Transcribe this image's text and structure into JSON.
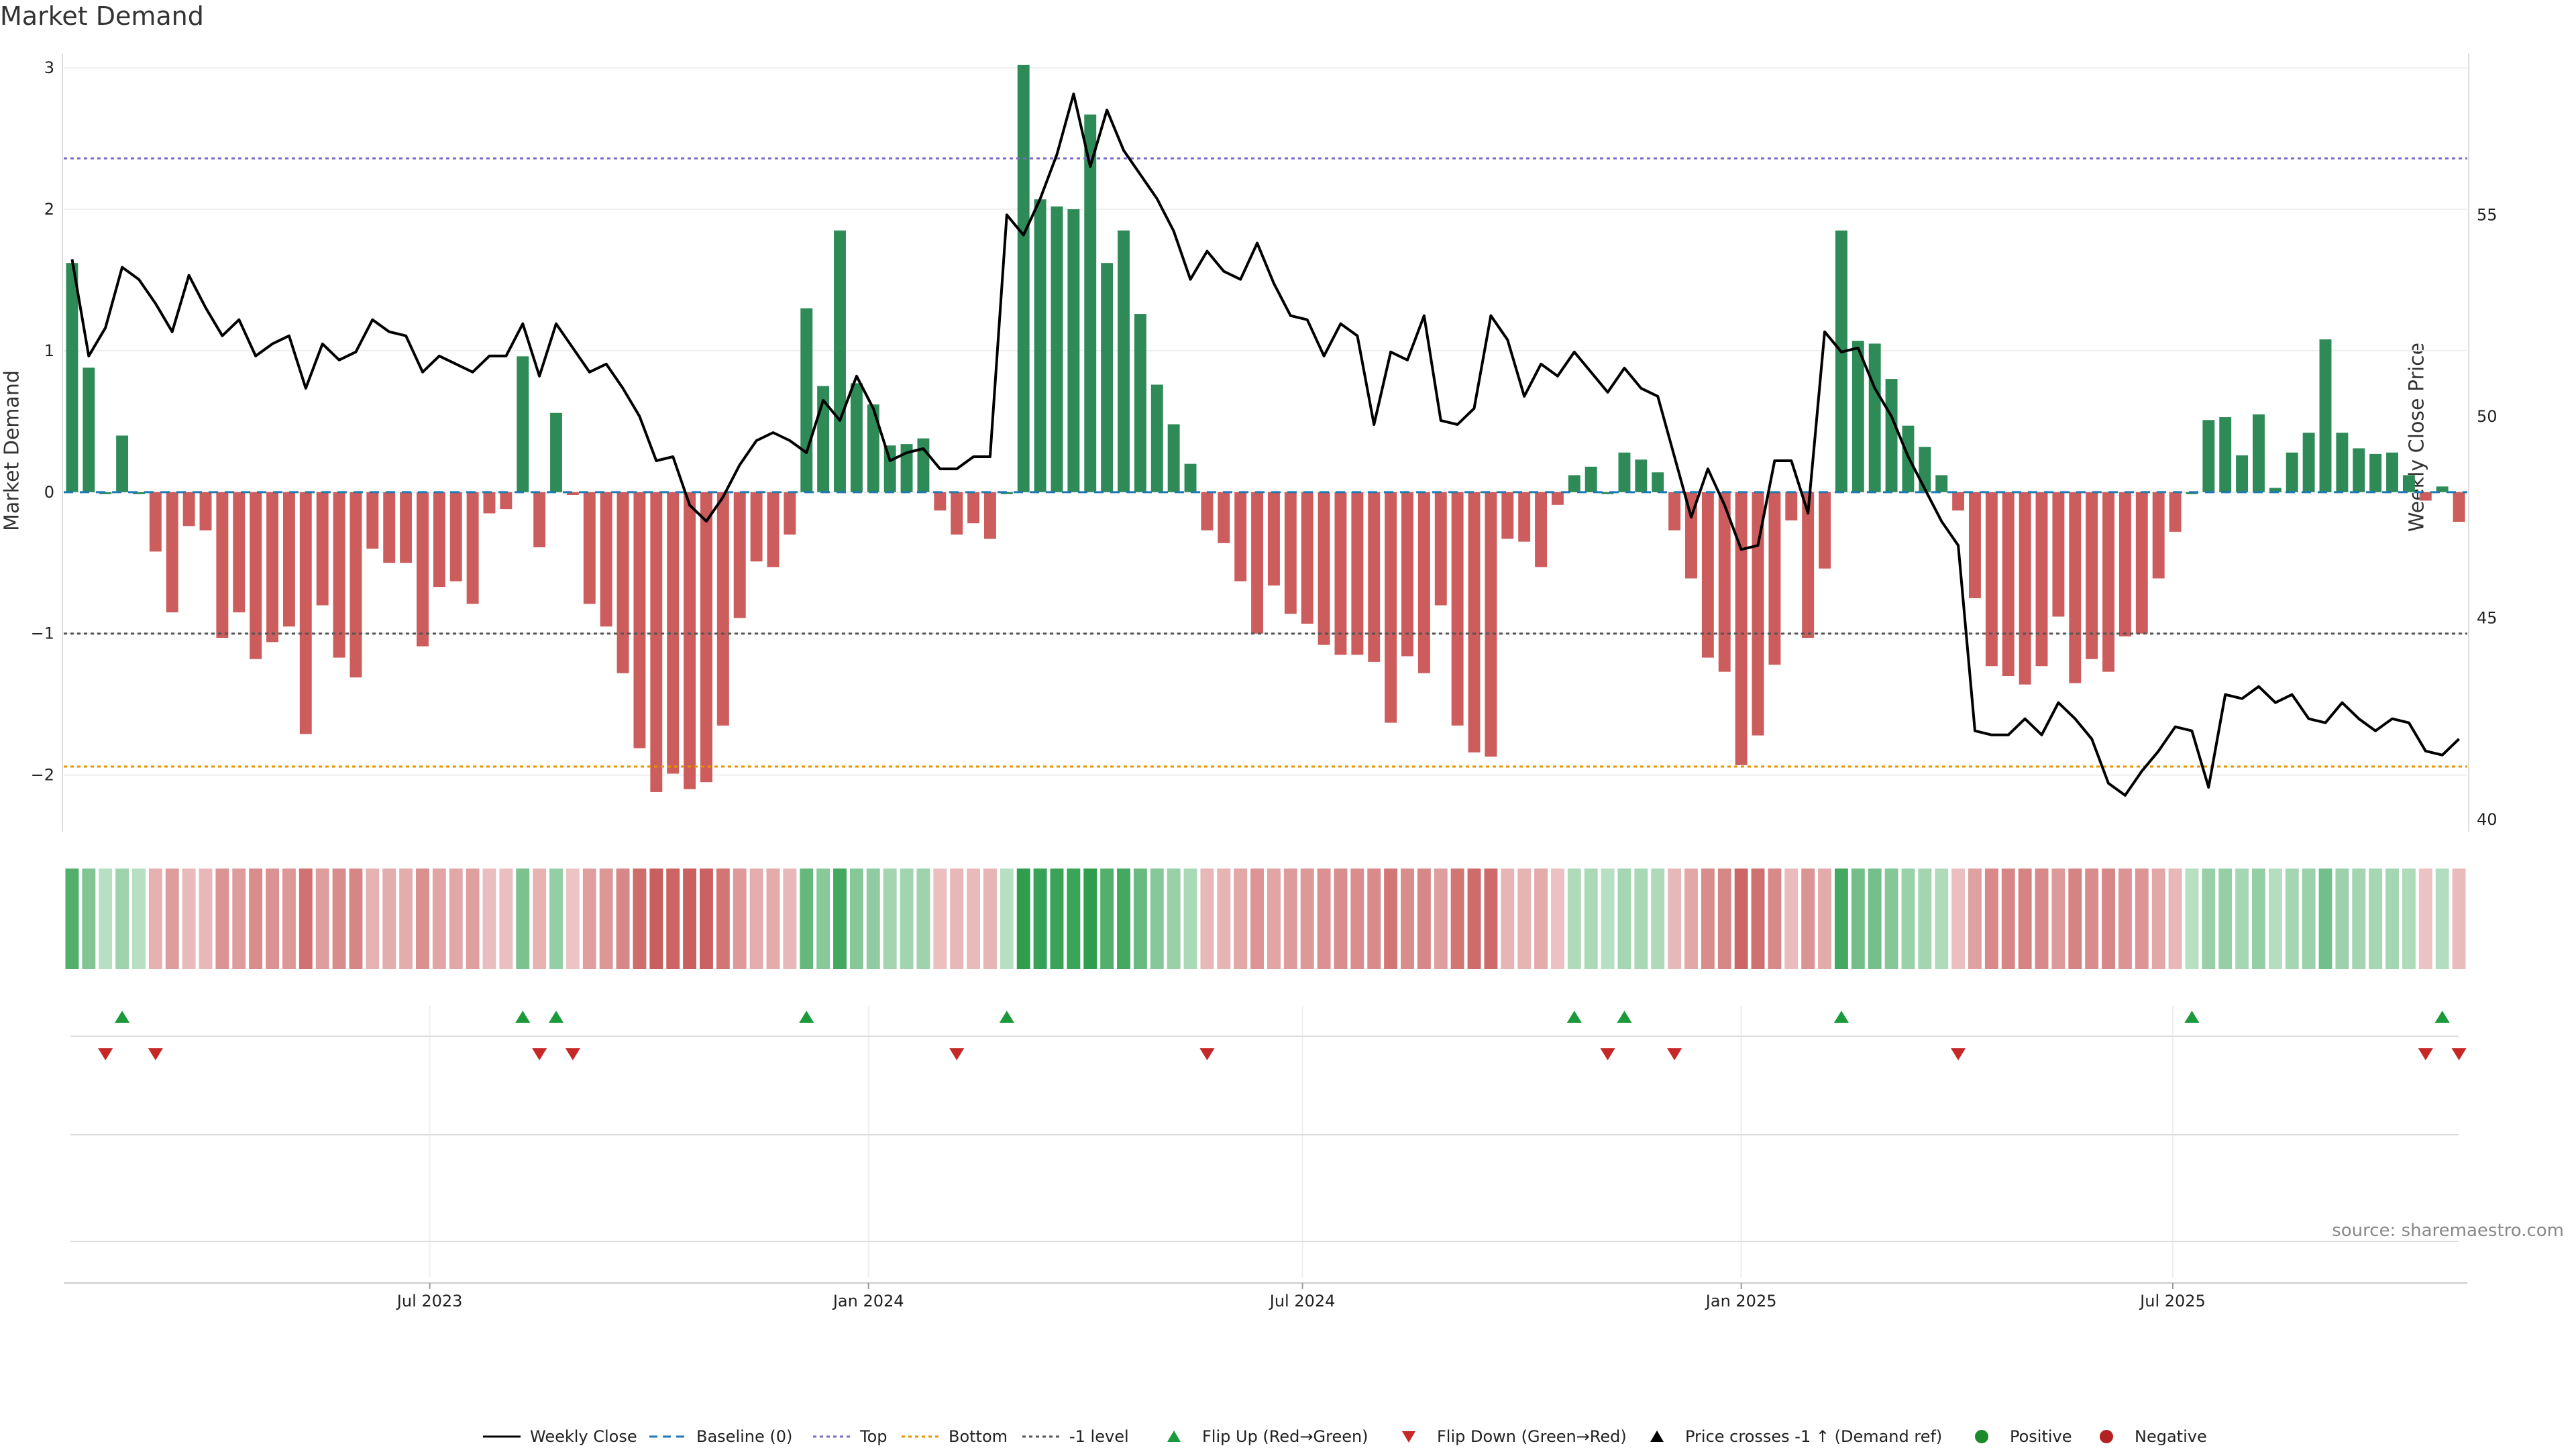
{
  "title": "Market Demand",
  "left_axis_label": "Market Demand",
  "right_axis_label": "Weekly Close Price",
  "source": "source: sharemaestro.com",
  "colors": {
    "positive": "#2e8b57",
    "negative": "#cd5c5c",
    "price": "#000000",
    "baseline": "#1f77b4",
    "top": "#7b68c8",
    "bottom": "#e69500",
    "minus1": "#555555",
    "flip_up": "#1a9a3a",
    "flip_down": "#c62828"
  },
  "left_yticks": [
    "3",
    "2",
    "1",
    "0",
    "−1",
    "−2"
  ],
  "right_yticks": [
    "55",
    "50",
    "45",
    "40"
  ],
  "x_tick_labels": [
    "Jul 2023",
    "Jan 2024",
    "Jul 2024",
    "Jan 2025",
    "Jul 2025"
  ],
  "legend": [
    {
      "label": "Weekly Close",
      "kind": "line-solid",
      "color": "#000000"
    },
    {
      "label": "Baseline (0)",
      "kind": "line-dashed",
      "color": "#1f77b4"
    },
    {
      "label": "Top",
      "kind": "line-dotted",
      "color": "#7b68c8"
    },
    {
      "label": "Bottom",
      "kind": "line-dotted",
      "color": "#e69500"
    },
    {
      "label": "-1 level",
      "kind": "line-dotted",
      "color": "#555555"
    },
    {
      "label": "Flip Up (Red→Green)",
      "kind": "tri-up",
      "color": "#1a9a3a"
    },
    {
      "label": "Flip Down (Green→Red)",
      "kind": "tri-down",
      "color": "#c62828"
    },
    {
      "label": "Price crosses -1 ↑ (Demand ref)",
      "kind": "tri-up",
      "color": "#000000"
    },
    {
      "label": "Positive",
      "kind": "dot",
      "color": "#1a8a2a"
    },
    {
      "label": "Negative",
      "kind": "dot",
      "color": "#b22222"
    }
  ],
  "chart_data": {
    "type": "bar",
    "start_date": "2023-02-01",
    "interval": "weekly",
    "left_ylim": [
      -2.4,
      3.1
    ],
    "right_ylim": [
      39.7,
      59.0
    ],
    "ref_lines": {
      "baseline": 0,
      "top": 2.36,
      "bottom": -1.94,
      "minus1": -1
    },
    "x_ticks": [
      "2023-07-01",
      "2024-01-01",
      "2024-07-01",
      "2025-01-01",
      "2025-07-01"
    ],
    "demand": [
      1.62,
      0.88,
      0,
      0.4,
      0,
      -0.42,
      -0.85,
      -0.24,
      -0.27,
      -1.03,
      -0.85,
      -1.18,
      -1.06,
      -0.95,
      -1.71,
      -0.8,
      -1.17,
      -1.31,
      -0.4,
      -0.5,
      -0.5,
      -1.09,
      -0.67,
      -0.63,
      -0.79,
      -0.15,
      -0.12,
      0.96,
      -0.39,
      0.56,
      -0.02,
      -0.79,
      -0.95,
      -1.28,
      -1.81,
      -2.12,
      -1.99,
      -2.1,
      -2.05,
      -1.65,
      -0.89,
      -0.49,
      -0.53,
      -0.3,
      1.3,
      0.75,
      1.85,
      0.77,
      0.62,
      0.33,
      0.34,
      0.38,
      -0.13,
      -0.3,
      -0.22,
      -0.33,
      0,
      3.02,
      2.07,
      2.02,
      2.0,
      2.67,
      1.62,
      1.85,
      1.26,
      0.76,
      0.48,
      0.2,
      -0.27,
      -0.36,
      -0.63,
      -1.0,
      -0.66,
      -0.86,
      -0.93,
      -1.08,
      -1.15,
      -1.15,
      -1.2,
      -1.63,
      -1.16,
      -1.28,
      -0.8,
      -1.65,
      -1.84,
      -1.87,
      -0.33,
      -0.35,
      -0.53,
      -0.09,
      0.12,
      0.18,
      0,
      0.28,
      0.23,
      0.14,
      -0.27,
      -0.61,
      -1.17,
      -1.27,
      -1.93,
      -1.72,
      -1.22,
      -0.2,
      -1.03,
      -0.54,
      1.85,
      1.07,
      1.05,
      0.8,
      0.47,
      0.32,
      0.12,
      -0.13,
      -0.75,
      -1.23,
      -1.3,
      -1.36,
      -1.23,
      -0.88,
      -1.35,
      -1.18,
      -1.27,
      -1.02,
      -1.0,
      -0.61,
      -0.28,
      0,
      0.51,
      0.53,
      0.26,
      0.55,
      0.03,
      0.28,
      0.42,
      1.08,
      0.42,
      0.31,
      0.27,
      0.28,
      0.12,
      -0.06,
      0.04,
      -0.21
    ],
    "weekly_close": [
      53.9,
      51.5,
      52.2,
      53.7,
      53.4,
      52.8,
      52.1,
      53.5,
      52.7,
      52.0,
      52.4,
      51.5,
      51.8,
      52.0,
      50.7,
      51.8,
      51.4,
      51.6,
      52.4,
      52.1,
      52.0,
      51.1,
      51.5,
      51.3,
      51.1,
      51.5,
      51.5,
      52.3,
      51.0,
      52.3,
      51.7,
      51.1,
      51.3,
      50.7,
      50.0,
      48.9,
      49.0,
      47.8,
      47.4,
      48.0,
      48.8,
      49.4,
      49.6,
      49.4,
      49.1,
      50.4,
      49.9,
      51.0,
      50.2,
      48.9,
      49.1,
      49.2,
      48.7,
      48.7,
      49.0,
      49.0,
      55.0,
      54.5,
      55.4,
      56.5,
      58.0,
      56.2,
      57.6,
      56.6,
      56.0,
      55.4,
      54.6,
      53.4,
      54.1,
      53.6,
      53.4,
      54.3,
      53.3,
      52.5,
      52.4,
      51.5,
      52.3,
      52.0,
      49.8,
      51.6,
      51.4,
      52.5,
      49.9,
      49.8,
      50.2,
      52.5,
      51.9,
      50.5,
      51.3,
      51.0,
      51.6,
      51.1,
      50.6,
      51.2,
      50.7,
      50.5,
      49.0,
      47.5,
      48.7,
      47.8,
      46.7,
      46.8,
      48.9,
      48.9,
      47.6,
      52.1,
      51.6,
      51.7,
      50.7,
      50.0,
      49.0,
      48.2,
      47.4,
      46.8,
      42.2,
      42.1,
      42.1,
      42.5,
      42.1,
      42.9,
      42.5,
      42.0,
      40.9,
      40.6,
      41.2,
      41.7,
      42.3,
      42.2,
      40.8,
      43.1,
      43.0,
      43.3,
      42.9,
      43.1,
      42.5,
      42.4,
      42.9,
      42.5,
      42.2,
      42.5,
      42.4,
      41.7,
      41.6,
      42.0
    ],
    "flip_up_weeks": [
      3,
      27,
      29,
      44,
      56,
      90,
      93,
      106,
      127,
      142
    ],
    "flip_down_weeks": [
      2,
      5,
      28,
      30,
      53,
      68,
      92,
      96,
      113,
      141,
      143
    ]
  }
}
